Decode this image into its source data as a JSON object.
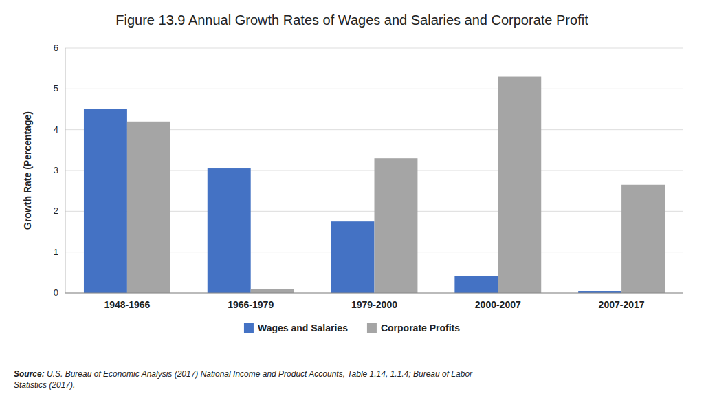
{
  "chart_data": {
    "type": "bar",
    "title": "Figure 13.9 Annual Growth Rates of Wages and Salaries and Corporate Profit",
    "categories": [
      "1948-1966",
      "1966-1979",
      "1979-2000",
      "2000-2007",
      "2007-2017"
    ],
    "series": [
      {
        "name": "Wages and Salaries",
        "color": "#4472C4",
        "values": [
          4.5,
          3.05,
          1.75,
          0.42,
          0.05
        ]
      },
      {
        "name": "Corporate Profits",
        "color": "#A5A5A5",
        "values": [
          4.2,
          0.1,
          3.3,
          5.3,
          2.65
        ]
      }
    ],
    "ylabel": "Growth Rate (Percentage)",
    "ylim": [
      0,
      6
    ],
    "yticks": [
      0,
      1,
      2,
      3,
      4,
      5,
      6
    ],
    "grid": true,
    "legend": "bottom",
    "annotations": [
      "Source: U.S. Bureau of Economic Analysis (2017) National Income and Product Accounts, Table 1.14, 1.1.4; Bureau of Labor\nStatistics (2017)."
    ]
  }
}
